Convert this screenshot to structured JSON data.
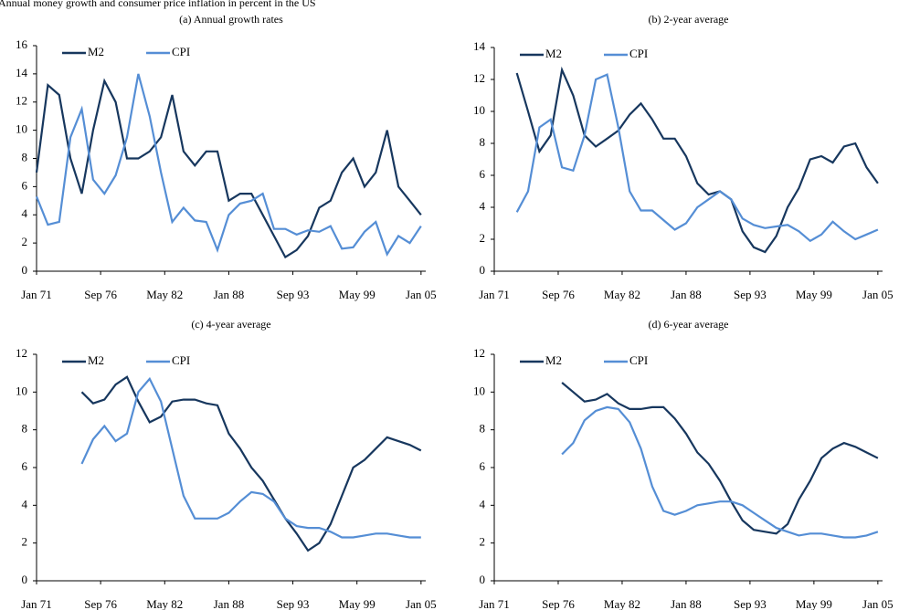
{
  "title": "Annual money growth and consumer price inflation in percent in the US",
  "chart_data": [
    {
      "type": "line",
      "title": "(a) Annual growth rates",
      "x": [
        "1971-01",
        "1972-01",
        "1973-01",
        "1974-01",
        "1975-01",
        "1976-01",
        "1977-01",
        "1978-01",
        "1979-01",
        "1980-01",
        "1981-01",
        "1982-01",
        "1983-01",
        "1984-01",
        "1985-01",
        "1986-01",
        "1987-01",
        "1988-01",
        "1989-01",
        "1990-01",
        "1991-01",
        "1992-01",
        "1993-01",
        "1994-01",
        "1995-01",
        "1996-01",
        "1997-01",
        "1998-01",
        "1999-01",
        "2000-01",
        "2001-01",
        "2002-01",
        "2003-01",
        "2004-01",
        "2005-01"
      ],
      "series": [
        {
          "name": "M2",
          "color": "#17375e",
          "values": [
            7,
            13.2,
            12.5,
            8,
            5.5,
            10,
            13.5,
            12,
            8,
            8,
            8.5,
            9.5,
            12.5,
            8.5,
            7.5,
            8.5,
            8.5,
            5,
            5.5,
            5.5,
            4,
            2.5,
            1,
            1.5,
            2.5,
            4.5,
            5,
            7,
            8,
            6,
            7,
            10,
            6,
            5,
            4
          ]
        },
        {
          "name": "CPI",
          "color": "#558ed5",
          "values": [
            5.3,
            3.3,
            3.5,
            9.5,
            11.5,
            6.5,
            5.5,
            6.8,
            9.5,
            14,
            11,
            7,
            3.5,
            4.5,
            3.6,
            3.5,
            1.5,
            4,
            4.8,
            5,
            5.5,
            3,
            3,
            2.6,
            2.9,
            2.8,
            3.2,
            1.6,
            1.7,
            2.8,
            3.5,
            1.2,
            2.5,
            2,
            3.2
          ]
        }
      ],
      "xlim": [
        "1971-01",
        "2005-06"
      ],
      "xticks": [
        {
          "value": "1971-01",
          "label": "Jan 71"
        },
        {
          "value": "1976-09",
          "label": "Sep 76"
        },
        {
          "value": "1982-05",
          "label": "May 82"
        },
        {
          "value": "1988-01",
          "label": "Jan 88"
        },
        {
          "value": "1993-09",
          "label": "Sep 93"
        },
        {
          "value": "1999-05",
          "label": "May 99"
        },
        {
          "value": "2005-01",
          "label": "Jan 05"
        }
      ],
      "ylim": [
        0,
        16
      ],
      "yticks": [
        0,
        2,
        4,
        6,
        8,
        10,
        12,
        14,
        16
      ],
      "legend": "upper left"
    },
    {
      "type": "line",
      "title": "(b) 2-year average",
      "x": [
        "1973-01",
        "1974-01",
        "1975-01",
        "1976-01",
        "1977-01",
        "1978-01",
        "1979-01",
        "1980-01",
        "1981-01",
        "1982-01",
        "1983-01",
        "1984-01",
        "1985-01",
        "1986-01",
        "1987-01",
        "1988-01",
        "1989-01",
        "1990-01",
        "1991-01",
        "1992-01",
        "1993-01",
        "1994-01",
        "1995-01",
        "1996-01",
        "1997-01",
        "1998-01",
        "1999-01",
        "2000-01",
        "2001-01",
        "2002-01",
        "2003-01",
        "2004-01",
        "2005-01"
      ],
      "series": [
        {
          "name": "M2",
          "color": "#17375e",
          "values": [
            12.4,
            10,
            7.5,
            8.5,
            12.6,
            11,
            8.5,
            7.8,
            8.3,
            8.8,
            9.8,
            10.5,
            9.5,
            8.3,
            8.3,
            7.2,
            5.5,
            4.8,
            5,
            4.5,
            2.5,
            1.5,
            1.2,
            2.2,
            4,
            5.2,
            7,
            7.2,
            6.8,
            7.8,
            8,
            6.5,
            5.5
          ]
        },
        {
          "name": "CPI",
          "color": "#558ed5",
          "values": [
            3.7,
            5,
            9,
            9.5,
            6.5,
            6.3,
            8.5,
            12,
            12.3,
            9,
            5,
            3.8,
            3.8,
            3.2,
            2.6,
            3,
            4,
            4.5,
            5,
            4.5,
            3.3,
            2.9,
            2.7,
            2.8,
            2.9,
            2.5,
            1.9,
            2.3,
            3.1,
            2.5,
            2,
            2.3,
            2.6
          ]
        }
      ],
      "xlim": [
        "1971-01",
        "2005-06"
      ],
      "xticks": [
        {
          "value": "1971-01",
          "label": "Jan 71"
        },
        {
          "value": "1976-09",
          "label": "Sep 76"
        },
        {
          "value": "1982-05",
          "label": "May 82"
        },
        {
          "value": "1988-01",
          "label": "Jan 88"
        },
        {
          "value": "1993-09",
          "label": "Sep 93"
        },
        {
          "value": "1999-05",
          "label": "May 99"
        },
        {
          "value": "2005-01",
          "label": "Jan 05"
        }
      ],
      "ylim": [
        0,
        14
      ],
      "yticks": [
        0,
        2,
        4,
        6,
        8,
        10,
        12,
        14
      ],
      "legend": "upper left"
    },
    {
      "type": "line",
      "title": "(c) 4-year average",
      "x": [
        "1975-01",
        "1976-01",
        "1977-01",
        "1978-01",
        "1979-01",
        "1980-01",
        "1981-01",
        "1982-01",
        "1983-01",
        "1984-01",
        "1985-01",
        "1986-01",
        "1987-01",
        "1988-01",
        "1989-01",
        "1990-01",
        "1991-01",
        "1992-01",
        "1993-01",
        "1994-01",
        "1995-01",
        "1996-01",
        "1997-01",
        "1998-01",
        "1999-01",
        "2000-01",
        "2001-01",
        "2002-01",
        "2003-01",
        "2004-01",
        "2005-01"
      ],
      "series": [
        {
          "name": "M2",
          "color": "#17375e",
          "values": [
            10,
            9.4,
            9.6,
            10.4,
            10.8,
            9.5,
            8.4,
            8.7,
            9.5,
            9.6,
            9.6,
            9.4,
            9.3,
            7.8,
            7,
            6,
            5.3,
            4.3,
            3.3,
            2.5,
            1.6,
            2,
            3,
            4.5,
            6,
            6.4,
            7,
            7.6,
            7.4,
            7.2,
            6.9
          ]
        },
        {
          "name": "CPI",
          "color": "#558ed5",
          "values": [
            6.2,
            7.5,
            8.2,
            7.4,
            7.8,
            10,
            10.7,
            9.5,
            7,
            4.5,
            3.3,
            3.3,
            3.3,
            3.6,
            4.2,
            4.7,
            4.6,
            4.2,
            3.3,
            2.9,
            2.8,
            2.8,
            2.6,
            2.3,
            2.3,
            2.4,
            2.5,
            2.5,
            2.4,
            2.3,
            2.3
          ]
        }
      ],
      "xlim": [
        "1971-01",
        "2005-06"
      ],
      "xticks": [
        {
          "value": "1971-01",
          "label": "Jan 71"
        },
        {
          "value": "1976-09",
          "label": "Sep 76"
        },
        {
          "value": "1982-05",
          "label": "May 82"
        },
        {
          "value": "1988-01",
          "label": "Jan 88"
        },
        {
          "value": "1993-09",
          "label": "Sep 93"
        },
        {
          "value": "1999-05",
          "label": "May 99"
        },
        {
          "value": "2005-01",
          "label": "Jan 05"
        }
      ],
      "ylim": [
        0,
        12
      ],
      "yticks": [
        0,
        2,
        4,
        6,
        8,
        10,
        12
      ],
      "legend": "upper left"
    },
    {
      "type": "line",
      "title": "(d) 6-year average",
      "x": [
        "1977-01",
        "1978-01",
        "1979-01",
        "1980-01",
        "1981-01",
        "1982-01",
        "1983-01",
        "1984-01",
        "1985-01",
        "1986-01",
        "1987-01",
        "1988-01",
        "1989-01",
        "1990-01",
        "1991-01",
        "1992-01",
        "1993-01",
        "1994-01",
        "1995-01",
        "1996-01",
        "1997-01",
        "1998-01",
        "1999-01",
        "2000-01",
        "2001-01",
        "2002-01",
        "2003-01",
        "2004-01",
        "2005-01"
      ],
      "series": [
        {
          "name": "M2",
          "color": "#17375e",
          "values": [
            10.5,
            10,
            9.5,
            9.6,
            9.9,
            9.4,
            9.1,
            9.1,
            9.2,
            9.2,
            8.6,
            7.8,
            6.8,
            6.2,
            5.3,
            4.2,
            3.2,
            2.7,
            2.6,
            2.5,
            3,
            4.3,
            5.3,
            6.5,
            7,
            7.3,
            7.1,
            6.8,
            6.5
          ]
        },
        {
          "name": "CPI",
          "color": "#558ed5",
          "values": [
            6.7,
            7.3,
            8.5,
            9,
            9.2,
            9.1,
            8.4,
            7,
            5,
            3.7,
            3.5,
            3.7,
            4,
            4.1,
            4.2,
            4.2,
            4,
            3.6,
            3.2,
            2.8,
            2.6,
            2.4,
            2.5,
            2.5,
            2.4,
            2.3,
            2.3,
            2.4,
            2.6
          ]
        }
      ],
      "xlim": [
        "1971-01",
        "2005-06"
      ],
      "xticks": [
        {
          "value": "1971-01",
          "label": "Jan 71"
        },
        {
          "value": "1976-09",
          "label": "Sep 76"
        },
        {
          "value": "1982-05",
          "label": "May 82"
        },
        {
          "value": "1988-01",
          "label": "Jan 88"
        },
        {
          "value": "1993-09",
          "label": "Sep 93"
        },
        {
          "value": "1999-05",
          "label": "May 99"
        },
        {
          "value": "2005-01",
          "label": "Jan 05"
        }
      ],
      "ylim": [
        0,
        12
      ],
      "yticks": [
        0,
        2,
        4,
        6,
        8,
        10,
        12
      ],
      "legend": "upper left"
    }
  ]
}
